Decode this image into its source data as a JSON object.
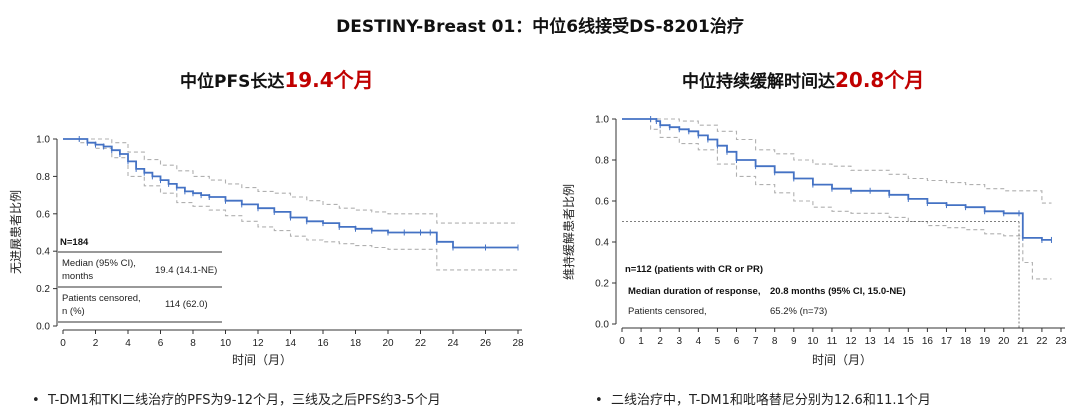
{
  "header": {
    "title": "DESTINY-Breast 01：中位6线接受DS-8201治疗"
  },
  "colors": {
    "accent": "#c00000",
    "curve": "#4472c4",
    "ci": "#b0b0b0"
  },
  "left_panel": {
    "title_prefix": "中位PFS长达",
    "title_highlight": "19.4个月",
    "bullet": "T-DM1和TKI二线治疗的PFS为9-12个月，三线及之后PFS约3-5个月",
    "box": {
      "n_label": "N=184",
      "row1_label_1": "Median (95% CI),",
      "row1_label_2": "months",
      "row1_value": "19.4 (14.1-NE)",
      "row2_label_1": "Patients censored,",
      "row2_label_2": "n (%)",
      "row2_value": "114 (62.0)"
    }
  },
  "right_panel": {
    "title_prefix": "中位持续缓解时间达",
    "title_highlight": "20.8个月",
    "bullet": "二线治疗中，T-DM1和吡咯替尼分别为12.6和11.1个月",
    "box": {
      "line1": "n=112 (patients with CR or PR)",
      "line2_label": "Median duration of response,",
      "line2_value": "20.8 months (95% CI, 15.0-NE)",
      "line3_label": "Patients censored,",
      "line3_value": "65.2% (n=73)"
    }
  },
  "chart_data": [
    {
      "type": "line",
      "name": "PFS Kaplan-Meier",
      "xlabel": "时间（月）",
      "ylabel": "无进展患者比例",
      "xlim": [
        0,
        28
      ],
      "ylim": [
        0,
        1.0
      ],
      "x_ticks": [
        "0",
        "2",
        "4",
        "6",
        "8",
        "10",
        "12",
        "14",
        "16",
        "18",
        "20",
        "22",
        "24",
        "26",
        "28"
      ],
      "y_ticks": [
        "0.0",
        "0.2",
        "0.4",
        "0.6",
        "0.8",
        "1.0"
      ],
      "series": [
        {
          "name": "PFS",
          "x": [
            0,
            1,
            1.5,
            2,
            2.5,
            3,
            3.5,
            4,
            4.5,
            5,
            5.5,
            6,
            6.5,
            7,
            7.5,
            8,
            8.5,
            9,
            10,
            11,
            12,
            13,
            14,
            15,
            16,
            17,
            18,
            19,
            20,
            21,
            22,
            22.6,
            23,
            24,
            26,
            28
          ],
          "y": [
            1.0,
            1.0,
            0.98,
            0.97,
            0.96,
            0.94,
            0.92,
            0.88,
            0.84,
            0.82,
            0.8,
            0.78,
            0.76,
            0.74,
            0.72,
            0.71,
            0.7,
            0.69,
            0.67,
            0.65,
            0.63,
            0.61,
            0.58,
            0.56,
            0.55,
            0.53,
            0.52,
            0.51,
            0.5,
            0.5,
            0.5,
            0.5,
            0.45,
            0.42,
            0.42,
            0.42
          ]
        },
        {
          "name": "95% CI upper",
          "x": [
            0,
            1,
            2,
            3,
            4,
            5,
            6,
            7,
            8,
            9,
            10,
            11,
            12,
            13,
            14,
            15,
            16,
            17,
            18,
            19,
            20,
            21,
            22,
            22.6,
            23,
            24,
            26,
            28
          ],
          "y": [
            1.0,
            1.0,
            1.0,
            0.98,
            0.93,
            0.89,
            0.86,
            0.83,
            0.8,
            0.78,
            0.76,
            0.74,
            0.72,
            0.71,
            0.69,
            0.67,
            0.65,
            0.63,
            0.62,
            0.61,
            0.6,
            0.6,
            0.6,
            0.6,
            0.55,
            0.55,
            0.55,
            0.55
          ]
        },
        {
          "name": "95% CI lower",
          "x": [
            0,
            1,
            2,
            3,
            4,
            5,
            6,
            7,
            8,
            9,
            10,
            11,
            12,
            13,
            14,
            15,
            16,
            17,
            18,
            19,
            20,
            21,
            22,
            22.6,
            23,
            24,
            26,
            28
          ],
          "y": [
            1.0,
            0.98,
            0.95,
            0.9,
            0.8,
            0.75,
            0.71,
            0.66,
            0.64,
            0.62,
            0.59,
            0.56,
            0.53,
            0.51,
            0.48,
            0.46,
            0.45,
            0.44,
            0.43,
            0.42,
            0.41,
            0.41,
            0.41,
            0.41,
            0.3,
            0.3,
            0.3,
            0.3
          ]
        }
      ],
      "annotations": [
        "N=184"
      ]
    },
    {
      "type": "line",
      "name": "Duration of response Kaplan-Meier",
      "xlabel": "时间（月）",
      "ylabel": "维持缓解患者比例",
      "xlim": [
        0,
        23
      ],
      "ylim": [
        0,
        1.0
      ],
      "x_ticks": [
        "0",
        "1",
        "2",
        "3",
        "4",
        "5",
        "6",
        "7",
        "8",
        "9",
        "10",
        "11",
        "12",
        "13",
        "14",
        "15",
        "16",
        "17",
        "18",
        "19",
        "20",
        "21",
        "22",
        "23"
      ],
      "y_ticks": [
        "0.0",
        "0.2",
        "0.4",
        "0.6",
        "0.8",
        "1.0"
      ],
      "series": [
        {
          "name": "DOR",
          "x": [
            0,
            1.5,
            1.8,
            2,
            2.5,
            3,
            3.5,
            4,
            4.5,
            5,
            5.5,
            6,
            7,
            8,
            9,
            10,
            11,
            12,
            13,
            14,
            15,
            16,
            17,
            18,
            19,
            20,
            20.8,
            21,
            22,
            22.5
          ],
          "y": [
            1.0,
            1.0,
            0.99,
            0.97,
            0.96,
            0.95,
            0.94,
            0.92,
            0.9,
            0.87,
            0.84,
            0.8,
            0.77,
            0.74,
            0.71,
            0.68,
            0.66,
            0.65,
            0.65,
            0.63,
            0.61,
            0.59,
            0.58,
            0.57,
            0.55,
            0.54,
            0.54,
            0.42,
            0.41,
            0.41
          ]
        },
        {
          "name": "95% CI upper",
          "x": [
            0,
            2,
            3,
            4,
            5,
            6,
            7,
            8,
            9,
            10,
            11,
            12,
            13,
            14,
            15,
            16,
            17,
            18,
            19,
            20,
            20.8,
            21,
            22,
            22.5
          ],
          "y": [
            1.0,
            1.0,
            0.99,
            0.97,
            0.94,
            0.9,
            0.85,
            0.83,
            0.8,
            0.78,
            0.77,
            0.75,
            0.75,
            0.73,
            0.71,
            0.7,
            0.69,
            0.68,
            0.66,
            0.65,
            0.65,
            0.65,
            0.59,
            0.59
          ]
        },
        {
          "name": "95% CI lower",
          "x": [
            0,
            1.5,
            2,
            3,
            4,
            5,
            6,
            7,
            8,
            9,
            10,
            11,
            12,
            13,
            14,
            15,
            16,
            17,
            18,
            19,
            20,
            20.8,
            21,
            21.5,
            22,
            22.5
          ],
          "y": [
            1.0,
            0.95,
            0.91,
            0.88,
            0.85,
            0.78,
            0.72,
            0.68,
            0.64,
            0.6,
            0.57,
            0.55,
            0.54,
            0.54,
            0.52,
            0.5,
            0.48,
            0.47,
            0.46,
            0.44,
            0.43,
            0.43,
            0.3,
            0.22,
            0.22,
            0.22
          ]
        }
      ],
      "median_line": {
        "y": 0.5,
        "x": 20.8
      },
      "annotations": [
        "n=112 (patients with CR or PR)"
      ]
    }
  ]
}
